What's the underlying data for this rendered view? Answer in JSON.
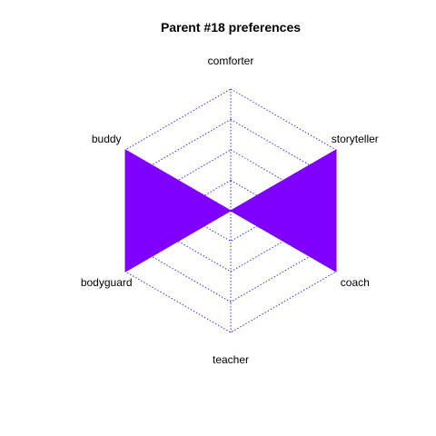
{
  "chart_data": {
    "type": "radar",
    "title": "Parent #18 preferences",
    "axes": [
      "comforter",
      "storyteller",
      "coach",
      "teacher",
      "bodyguard",
      "buddy"
    ],
    "series": [
      {
        "values": [
          0.0,
          1.0,
          1.0,
          0.0,
          1.0,
          1.0
        ]
      }
    ],
    "rlim": [
      0,
      1
    ],
    "grid_levels": 4,
    "grid": true,
    "colors": {
      "fill": "#7f00ff",
      "grid": "#3333ff"
    }
  }
}
